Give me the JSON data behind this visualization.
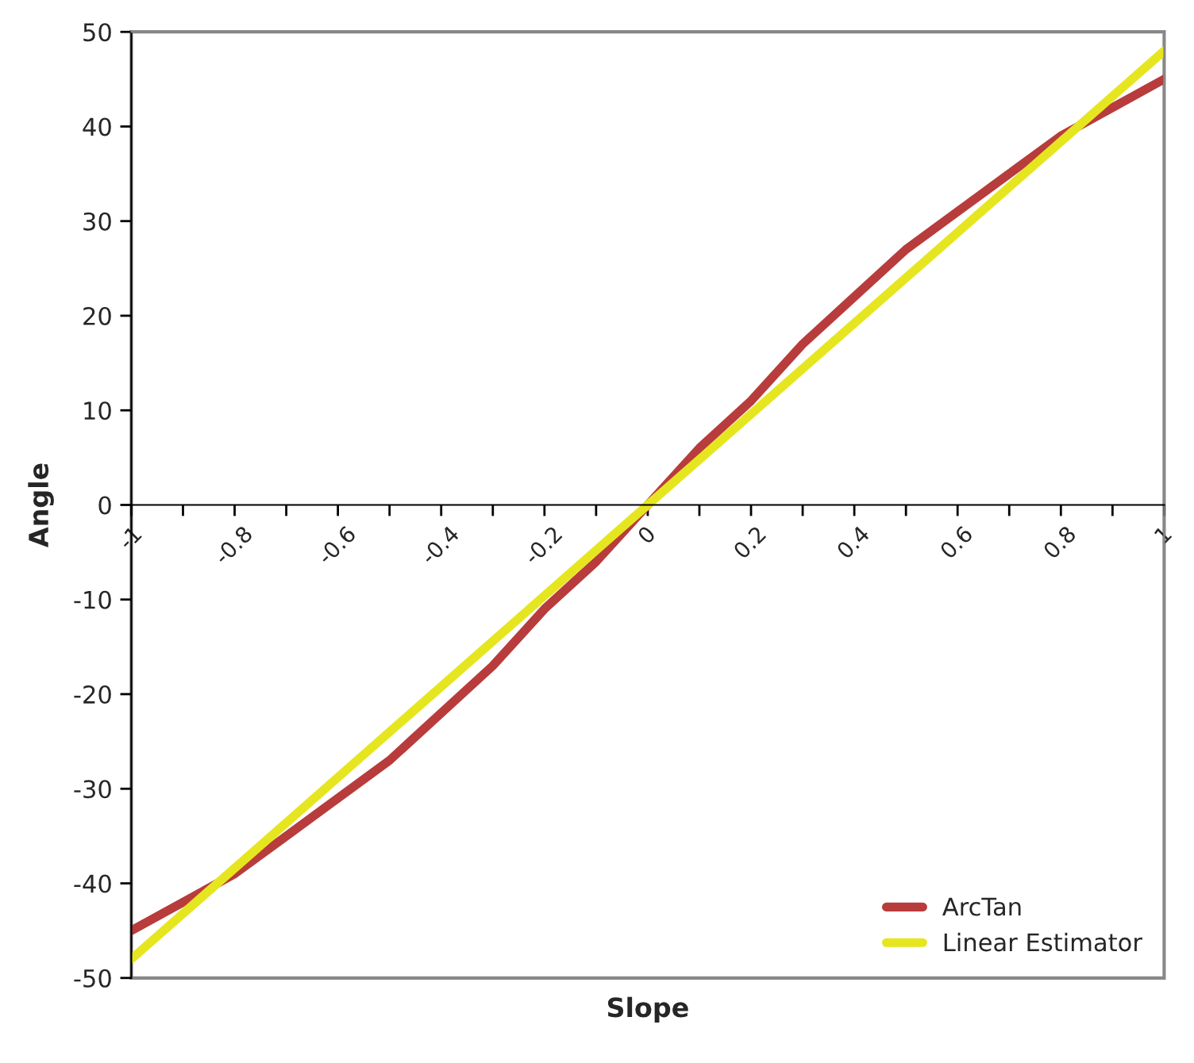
{
  "chart_data": {
    "type": "line",
    "xlabel": "Slope",
    "ylabel": "Angle",
    "x": [
      -1,
      -0.9,
      -0.8,
      -0.7,
      -0.6,
      -0.5,
      -0.4,
      -0.3,
      -0.2,
      -0.1,
      0,
      0.1,
      0.2,
      0.3,
      0.4,
      0.5,
      0.6,
      0.7,
      0.8,
      0.9,
      1
    ],
    "series": [
      {
        "name": "ArcTan",
        "color": "#b83c3c",
        "values": [
          -45,
          -42,
          -39,
          -35,
          -31,
          -27,
          -22,
          -17,
          -11,
          -6,
          0,
          6,
          11,
          17,
          22,
          27,
          31,
          35,
          39,
          42,
          45
        ]
      },
      {
        "name": "Linear Estimator",
        "color": "#e6e620",
        "x": [
          -1,
          1
        ],
        "values": [
          -48,
          48
        ]
      }
    ],
    "xlim": [
      -1,
      1
    ],
    "ylim": [
      -50,
      50
    ],
    "xticks": [
      -1,
      {
        "value": -0.9,
        "label": null
      },
      -0.8,
      {
        "value": -0.7,
        "label": null
      },
      -0.6,
      {
        "value": -0.5,
        "label": null
      },
      -0.4,
      {
        "value": -0.3,
        "label": null
      },
      -0.2,
      {
        "value": -0.1,
        "label": null
      },
      0,
      {
        "value": 0.1,
        "label": null
      },
      0.2,
      {
        "value": 0.3,
        "label": null
      },
      0.4,
      {
        "value": 0.5,
        "label": null
      },
      0.6,
      {
        "value": 0.7,
        "label": null
      },
      0.8,
      {
        "value": 0.9,
        "label": null
      },
      1
    ],
    "yticks": [
      -50,
      -40,
      -30,
      -20,
      -10,
      0,
      10,
      20,
      30,
      40,
      50
    ],
    "legend": "bottom right",
    "grid": false,
    "marker": "none",
    "line_style": "solid"
  }
}
